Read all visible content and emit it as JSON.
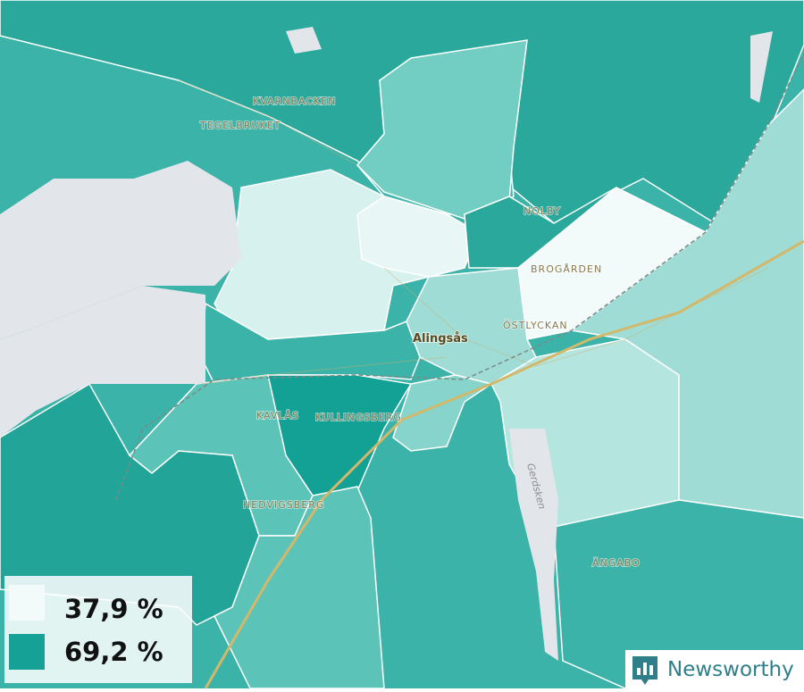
{
  "places": [
    {
      "label": "KVARNBACKEN"
    },
    {
      "label": "TEGELBRUKET"
    },
    {
      "label": "NOLBY"
    },
    {
      "label": "BROGÅRDEN"
    },
    {
      "label": "ÖSTLYCKAN"
    },
    {
      "label": "Alingsås"
    },
    {
      "label": "KAVLÅS"
    },
    {
      "label": "KULLINGSBERG"
    },
    {
      "label": "HEDVIGSBERG"
    },
    {
      "label": "ÄNGABO"
    },
    {
      "label": "Gerdsken"
    }
  ],
  "legend": [
    {
      "label": "37,9 %",
      "color": "#f2fbfa"
    },
    {
      "label": "69,2 %",
      "color": "#15a196"
    }
  ],
  "brand": "Newsworthy"
}
